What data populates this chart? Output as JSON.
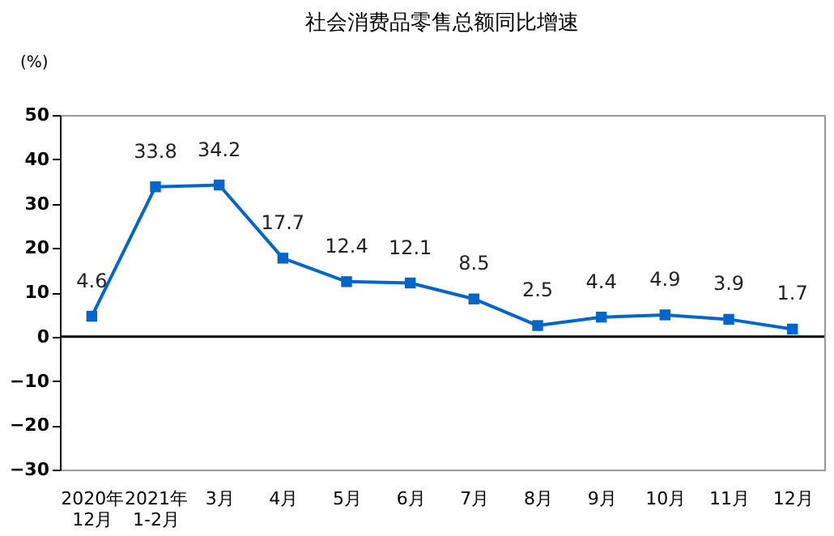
{
  "chart_data": {
    "type": "line",
    "title": "社会消费品零售总额同比增速",
    "ylabel": "(%)",
    "categories": [
      "2020年\n12月",
      "2021年\n1-2月",
      "3月",
      "4月",
      "5月",
      "6月",
      "7月",
      "8月",
      "9月",
      "10月",
      "11月",
      "12月"
    ],
    "series": [
      {
        "color": "#0066cc",
        "values": [
          4.6,
          33.8,
          34.2,
          17.7,
          12.4,
          12.1,
          8.5,
          2.5,
          4.4,
          4.9,
          3.9,
          1.7
        ]
      }
    ],
    "ylim": [
      -30,
      50
    ],
    "yticks": [
      -30,
      -20,
      -10,
      0,
      10,
      20,
      30,
      40,
      50
    ],
    "ref_lines": [
      {
        "axis": "y",
        "value": 0,
        "color": "#000000"
      }
    ],
    "marker": "square",
    "data_labels": true,
    "grid": false
  }
}
